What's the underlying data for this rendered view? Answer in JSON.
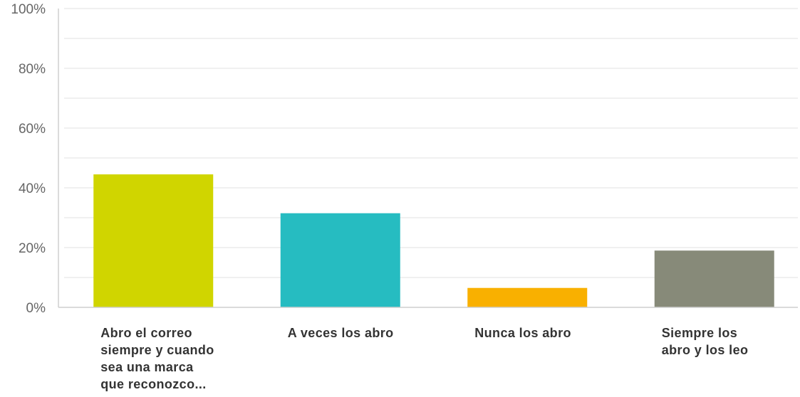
{
  "chart_data": {
    "type": "bar",
    "categories": [
      "Abro el correo\nsiempre y cuando\nsea una marca\nque reconozco...",
      "A veces los abro",
      "Nunca los abro",
      "Siempre los\nabro y los leo"
    ],
    "values": [
      44.5,
      31.5,
      6.5,
      19
    ],
    "ylim": [
      0,
      100
    ],
    "yticks": [
      0,
      20,
      40,
      60,
      80,
      100
    ],
    "ytick_labels": [
      "0%",
      "20%",
      "40%",
      "60%",
      "80%",
      "100%"
    ],
    "grid": true,
    "colors": [
      "#d0d500",
      "#26bcc1",
      "#f9b000",
      "#878a79"
    ],
    "gridline_color": "#ececec",
    "axis_color": "#cfcfcf"
  }
}
